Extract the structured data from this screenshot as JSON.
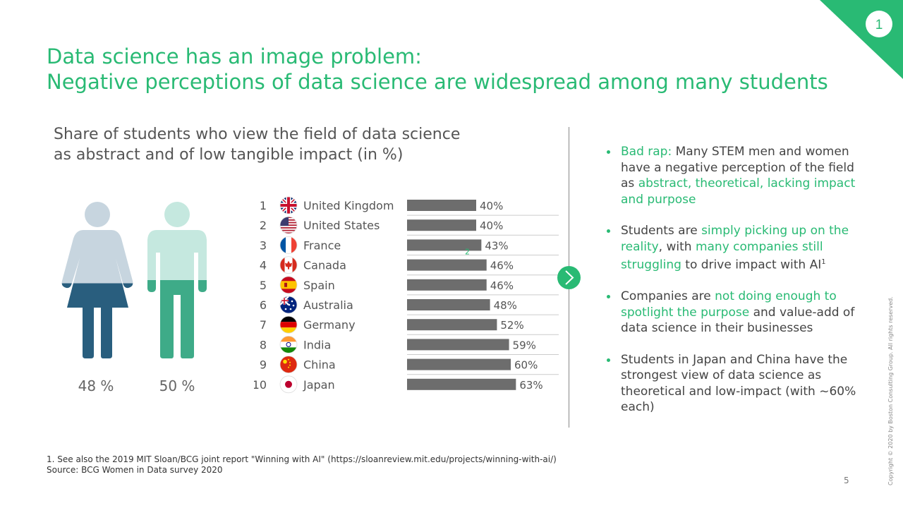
{
  "page_badge": "1",
  "title": {
    "line1": "Data science has an image problem:",
    "line2": "Negative perceptions of data science are widespread among many students"
  },
  "colors": {
    "accent": "#29ba74",
    "women_light": "#c7d5df",
    "women_dark": "#295e7e",
    "men_light": "#c5e8df",
    "men_dark": "#3eab88",
    "bar": "#6d6d6d"
  },
  "chart_data": [
    {
      "type": "pictogram",
      "title_line1": "Share of students who view the field of data science",
      "title_line2": "as abstract and of low tangible impact (in %)",
      "series": [
        {
          "name": "",
          "icon": "woman-icon",
          "value": 48,
          "label": "48 %"
        },
        {
          "name": "",
          "icon": "man-icon",
          "value": 50,
          "label": "50 %"
        }
      ]
    },
    {
      "type": "bar",
      "orientation": "horizontal",
      "ranks": [
        "1",
        "2",
        "3",
        "4",
        "5",
        "6",
        "7",
        "8",
        "9",
        "10"
      ],
      "categories": [
        "United Kingdom",
        "United States",
        "France",
        "Canada",
        "Spain",
        "Australia",
        "Germany",
        "India",
        "China",
        "Japan"
      ],
      "flags": [
        "uk-flag-icon",
        "us-flag-icon",
        "france-flag-icon",
        "canada-flag-icon",
        "spain-flag-icon",
        "australia-flag-icon",
        "germany-flag-icon",
        "india-flag-icon",
        "china-flag-icon",
        "japan-flag-icon"
      ],
      "values": [
        40,
        40,
        43,
        46,
        46,
        48,
        52,
        59,
        60,
        63
      ],
      "labels": [
        "40%",
        "40%",
        "43%",
        "46%",
        "46%",
        "48%",
        "52%",
        "59%",
        "60%",
        "63%"
      ],
      "annotation": "2",
      "xlim": [
        0,
        100
      ]
    }
  ],
  "arrow_icon": "chevron-right-icon",
  "bullets": [
    {
      "parts": [
        {
          "text": "Bad rap:",
          "accent": true
        },
        {
          "text": " Many STEM men and women have a negative perception of the field as ",
          "accent": false
        },
        {
          "text": "abstract, theoretical, lacking impact and purpose",
          "accent": true
        }
      ]
    },
    {
      "parts": [
        {
          "text": "Students are ",
          "accent": false
        },
        {
          "text": "simply picking up on the reality",
          "accent": true
        },
        {
          "text": ", with ",
          "accent": false
        },
        {
          "text": "many companies still struggling",
          "accent": true
        },
        {
          "text": " to drive impact with AI",
          "accent": false
        }
      ],
      "sup": "1"
    },
    {
      "parts": [
        {
          "text": "Companies are ",
          "accent": false
        },
        {
          "text": "not doing enough to spotlight the purpose",
          "accent": true
        },
        {
          "text": " and value-add of data science in their businesses",
          "accent": false
        }
      ]
    },
    {
      "parts": [
        {
          "text": "Students in Japan and China have the strongest view of data science as theoretical and low-impact (with ~60% each)",
          "accent": false
        }
      ]
    }
  ],
  "footnotes": {
    "note1": "1. See also the 2019 MIT Sloan/BCG joint report \"Winning with AI\" (https://sloanreview.mit.edu/projects/winning-with-ai/)",
    "source": "Source: BCG Women in Data survey 2020"
  },
  "page_number": "5",
  "copyright": "Copyright © 2020 by Boston Consulting Group. All rights reserved."
}
